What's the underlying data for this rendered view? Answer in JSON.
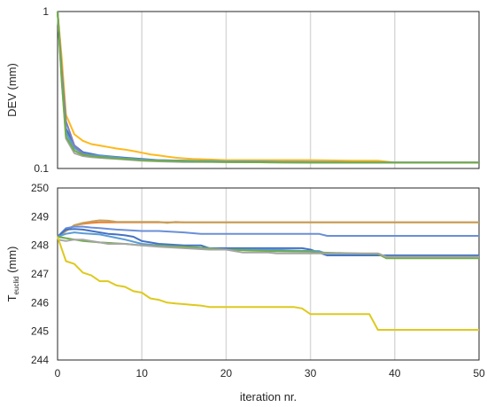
{
  "chart_data": [
    {
      "type": "line",
      "ylabel": "DEV (mm)",
      "yscale": "log",
      "ylim": [
        0.1,
        1
      ],
      "yticks": [
        "1",
        "0.1"
      ],
      "xlim": [
        0,
        50
      ],
      "grid": "vertical",
      "legend": "none",
      "series": [
        {
          "color": "#FFB81C",
          "x": [
            0,
            0.5,
            1,
            2,
            3,
            4,
            5,
            6,
            7,
            8,
            9,
            10,
            11,
            12,
            13,
            14,
            15,
            16,
            18,
            20,
            25,
            30,
            35,
            38,
            40,
            50
          ],
          "y": [
            1,
            0.5,
            0.22,
            0.165,
            0.15,
            0.143,
            0.14,
            0.137,
            0.134,
            0.132,
            0.129,
            0.126,
            0.123,
            0.121,
            0.119,
            0.117,
            0.116,
            0.115,
            0.114,
            0.113,
            0.113,
            0.113,
            0.112,
            0.112,
            0.109,
            0.109
          ]
        },
        {
          "color": "#4472C4",
          "x": [
            0,
            0.5,
            1,
            2,
            3,
            4,
            5,
            8,
            10,
            12,
            15,
            20,
            30,
            40,
            50
          ],
          "y": [
            1,
            0.4,
            0.18,
            0.14,
            0.127,
            0.124,
            0.121,
            0.117,
            0.115,
            0.113,
            0.112,
            0.111,
            0.11,
            0.109,
            0.109
          ]
        },
        {
          "color": "#5B9BD5",
          "x": [
            0,
            0.5,
            1,
            2,
            3,
            4,
            6,
            8,
            10,
            12,
            15,
            20,
            30,
            40,
            50
          ],
          "y": [
            1,
            0.38,
            0.17,
            0.135,
            0.125,
            0.122,
            0.119,
            0.116,
            0.114,
            0.113,
            0.112,
            0.111,
            0.11,
            0.109,
            0.109
          ]
        },
        {
          "color": "#7F7FBF",
          "x": [
            0,
            0.5,
            1,
            2,
            3,
            4,
            6,
            8,
            10,
            12,
            15,
            20,
            30,
            40,
            50
          ],
          "y": [
            1,
            0.42,
            0.2,
            0.14,
            0.124,
            0.12,
            0.117,
            0.115,
            0.113,
            0.112,
            0.111,
            0.11,
            0.109,
            0.109,
            0.109
          ]
        },
        {
          "color": "#A5A5A5",
          "x": [
            0,
            0.5,
            1,
            2,
            3,
            4,
            6,
            8,
            10,
            12,
            15,
            20,
            30,
            40,
            50
          ],
          "y": [
            1,
            0.35,
            0.155,
            0.125,
            0.12,
            0.118,
            0.116,
            0.114,
            0.112,
            0.111,
            0.11,
            0.11,
            0.109,
            0.109,
            0.109
          ]
        },
        {
          "color": "#70AD47",
          "x": [
            0,
            0.5,
            1,
            2,
            3,
            5,
            8,
            10,
            15,
            20,
            30,
            40,
            50
          ],
          "y": [
            1,
            0.36,
            0.16,
            0.13,
            0.122,
            0.118,
            0.115,
            0.113,
            0.111,
            0.11,
            0.109,
            0.109,
            0.109
          ]
        }
      ]
    },
    {
      "type": "line",
      "ylabel_main": "T",
      "ylabel_sub": "euclid",
      "ylabel_unit": " (mm)",
      "xlabel": "iteration nr.",
      "xlim": [
        0,
        50
      ],
      "ylim": [
        244,
        250
      ],
      "xticks": [
        0,
        10,
        20,
        30,
        40,
        50
      ],
      "yticks": [
        244,
        245,
        246,
        247,
        248,
        249,
        250
      ],
      "grid": "vertical",
      "legend": "none",
      "series": [
        {
          "color": "#ED7D31",
          "x": [
            0,
            1,
            2,
            3,
            4,
            5,
            6,
            50
          ],
          "y": [
            248.3,
            248.5,
            248.7,
            248.75,
            248.78,
            248.8,
            248.8,
            248.8
          ]
        },
        {
          "color": "#C5A05A",
          "x": [
            0,
            1,
            2,
            3,
            4,
            5,
            6,
            7,
            8,
            10,
            12,
            13,
            14,
            15,
            17,
            50
          ],
          "y": [
            248.3,
            248.5,
            248.7,
            248.78,
            248.83,
            248.87,
            248.86,
            248.82,
            248.82,
            248.82,
            248.82,
            248.78,
            248.82,
            248.8,
            248.8,
            248.8
          ]
        },
        {
          "color": "#6A8FD8",
          "x": [
            0,
            1,
            2,
            3,
            4,
            5,
            7,
            10,
            12,
            15,
            17,
            20,
            25,
            31,
            32,
            50
          ],
          "y": [
            248.3,
            248.6,
            248.65,
            248.65,
            248.62,
            248.6,
            248.55,
            248.5,
            248.5,
            248.45,
            248.4,
            248.4,
            248.4,
            248.4,
            248.33,
            248.33
          ]
        },
        {
          "color": "#4472C4",
          "x": [
            0,
            1,
            2,
            3,
            4,
            5,
            6,
            7,
            8,
            9,
            10,
            11,
            12,
            15,
            17,
            18,
            20,
            22,
            25,
            29,
            30,
            31,
            32,
            38,
            39,
            50
          ],
          "y": [
            248.3,
            248.55,
            248.57,
            248.55,
            248.5,
            248.45,
            248.4,
            248.38,
            248.35,
            248.3,
            248.15,
            248.1,
            248.05,
            248.0,
            248.0,
            247.9,
            247.9,
            247.9,
            247.9,
            247.9,
            247.85,
            247.75,
            247.65,
            247.65,
            247.65,
            247.65
          ]
        },
        {
          "color": "#5B9BD5",
          "x": [
            0,
            1,
            2,
            3,
            4,
            5,
            8,
            10,
            12,
            15,
            18,
            20,
            22,
            25,
            30,
            31,
            32,
            38,
            39,
            50
          ],
          "y": [
            248.3,
            248.4,
            248.45,
            248.42,
            248.4,
            248.38,
            248.2,
            248.05,
            248.0,
            247.95,
            247.9,
            247.85,
            247.85,
            247.85,
            247.8,
            247.8,
            247.7,
            247.7,
            247.6,
            247.6
          ]
        },
        {
          "color": "#70AD47",
          "x": [
            0,
            1,
            2,
            3,
            5,
            8,
            10,
            15,
            20,
            25,
            30,
            31,
            38,
            39,
            50
          ],
          "y": [
            248.3,
            248.25,
            248.2,
            248.15,
            248.1,
            248.05,
            248.0,
            247.95,
            247.85,
            247.8,
            247.78,
            247.75,
            247.7,
            247.55,
            247.55
          ]
        },
        {
          "color": "#A5A5A5",
          "x": [
            0,
            1,
            2,
            3,
            4,
            5,
            6,
            8,
            10,
            12,
            15,
            18,
            20,
            21,
            22,
            25,
            26,
            28,
            30,
            31,
            38,
            39,
            50
          ],
          "y": [
            248.2,
            248.15,
            248.2,
            248.2,
            248.15,
            248.1,
            248.05,
            248.05,
            248.0,
            247.95,
            247.9,
            247.85,
            247.85,
            247.8,
            247.75,
            247.75,
            247.72,
            247.72,
            247.72,
            247.72,
            247.72,
            247.6,
            247.6
          ]
        },
        {
          "color": "#DEC91E",
          "x": [
            0,
            1,
            2,
            3,
            4,
            5,
            6,
            7,
            8,
            9,
            10,
            11,
            12,
            13,
            14,
            15,
            16,
            17,
            18,
            19,
            20,
            28,
            29,
            30,
            37,
            38,
            50
          ],
          "y": [
            248.3,
            247.45,
            247.35,
            247.05,
            246.95,
            246.75,
            246.75,
            246.6,
            246.55,
            246.4,
            246.35,
            246.15,
            246.1,
            246.0,
            245.97,
            245.95,
            245.92,
            245.9,
            245.85,
            245.85,
            245.85,
            245.85,
            245.8,
            245.6,
            245.6,
            245.05,
            245.05
          ]
        }
      ]
    }
  ]
}
